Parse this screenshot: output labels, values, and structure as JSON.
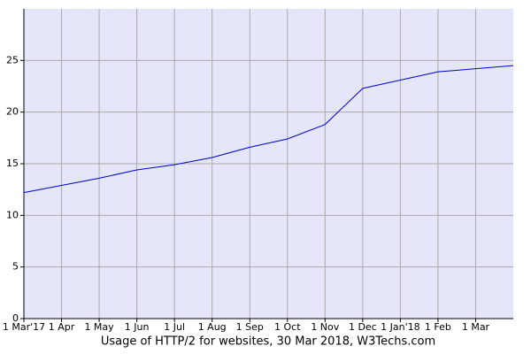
{
  "chart_data": {
    "type": "line",
    "title": "Usage of HTTP/2 for websites, 30 Mar 2018, W3Techs.com",
    "categories": [
      "1 Mar'17",
      "1 Apr",
      "1 May",
      "1 Jun",
      "1 Jul",
      "1 Aug",
      "1 Sep",
      "1 Oct",
      "1 Nov",
      "1 Dec",
      "1 Jan'18",
      "1 Feb",
      "1 Mar",
      null
    ],
    "series": [
      {
        "name": "HTTP/2",
        "color": "#0000cc",
        "values": [
          12.2,
          12.9,
          13.6,
          14.4,
          14.9,
          15.6,
          16.6,
          17.4,
          18.8,
          22.3,
          23.1,
          23.9,
          24.2,
          24.5
        ]
      }
    ],
    "ylim": [
      0,
      30
    ],
    "yticks": [
      0,
      5,
      10,
      15,
      20,
      25
    ],
    "grid": true,
    "background": "#e6e6fa"
  }
}
